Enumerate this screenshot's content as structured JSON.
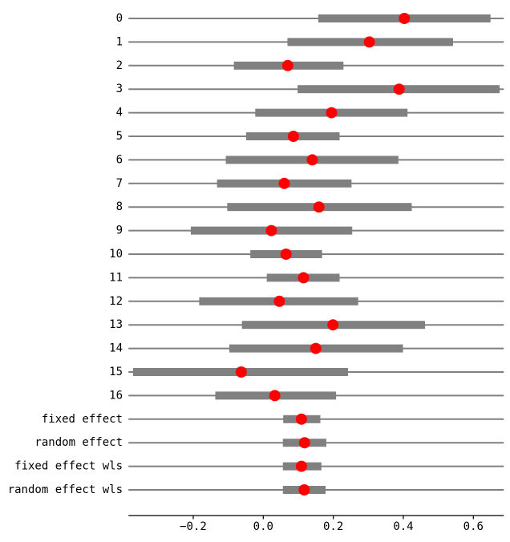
{
  "chart_data": {
    "type": "scatter",
    "variant": "forest-dot-plot-with-intervals",
    "title": "",
    "xlabel": "",
    "ylabel": "",
    "grid": false,
    "legend": null,
    "xlim": [
      -0.385,
      0.687
    ],
    "xticks": [
      -0.2,
      0.0,
      0.2,
      0.4,
      0.6
    ],
    "xtick_labels": [
      "−0.2",
      "0.0",
      "0.2",
      "0.4",
      "0.6"
    ],
    "row_reference_line": "full-width thin gray horizontal line on every row",
    "rows": [
      {
        "label": "0",
        "point": 0.403,
        "interval": [
          0.157,
          0.649
        ]
      },
      {
        "label": "1",
        "point": 0.303,
        "interval": [
          0.069,
          0.542
        ]
      },
      {
        "label": "2",
        "point": 0.07,
        "interval": [
          -0.084,
          0.229
        ]
      },
      {
        "label": "3",
        "point": 0.388,
        "interval": [
          0.098,
          0.675
        ]
      },
      {
        "label": "4",
        "point": 0.195,
        "interval": [
          -0.023,
          0.412
        ]
      },
      {
        "label": "5",
        "point": 0.086,
        "interval": [
          -0.049,
          0.218
        ]
      },
      {
        "label": "6",
        "point": 0.14,
        "interval": [
          -0.107,
          0.386
        ]
      },
      {
        "label": "7",
        "point": 0.06,
        "interval": [
          -0.132,
          0.252
        ]
      },
      {
        "label": "8",
        "point": 0.159,
        "interval": [
          -0.103,
          0.424
        ]
      },
      {
        "label": "9",
        "point": 0.023,
        "interval": [
          -0.207,
          0.254
        ]
      },
      {
        "label": "10",
        "point": 0.065,
        "interval": [
          -0.037,
          0.168
        ]
      },
      {
        "label": "11",
        "point": 0.115,
        "interval": [
          0.01,
          0.218
        ]
      },
      {
        "label": "12",
        "point": 0.046,
        "interval": [
          -0.183,
          0.271
        ]
      },
      {
        "label": "13",
        "point": 0.199,
        "interval": [
          -0.061,
          0.462
        ]
      },
      {
        "label": "14",
        "point": 0.15,
        "interval": [
          -0.097,
          0.399
        ]
      },
      {
        "label": "15",
        "point": -0.063,
        "interval": [
          -0.372,
          0.242
        ]
      },
      {
        "label": "16",
        "point": 0.033,
        "interval": [
          -0.137,
          0.208
        ]
      },
      {
        "label": "fixed effect",
        "point": 0.109,
        "interval": [
          0.057,
          0.163
        ]
      },
      {
        "label": "random effect",
        "point": 0.118,
        "interval": [
          0.056,
          0.18
        ]
      },
      {
        "label": "fixed effect wls",
        "point": 0.109,
        "interval": [
          0.056,
          0.166
        ]
      },
      {
        "label": "random effect wls",
        "point": 0.117,
        "interval": [
          0.056,
          0.178
        ]
      }
    ],
    "colors": {
      "point": "#ff0000",
      "interval_bar": "#808080",
      "reference_line": "#808080",
      "axis": "#000000"
    }
  }
}
